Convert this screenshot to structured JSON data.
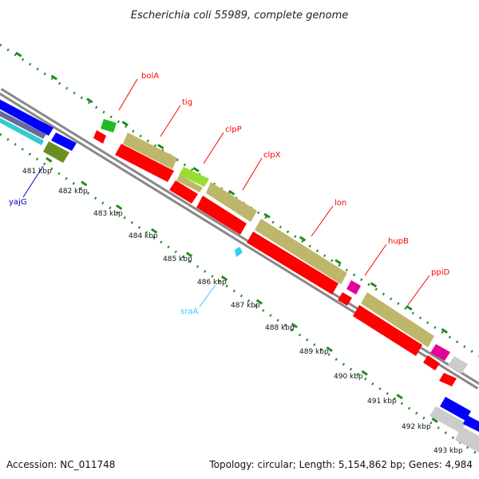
{
  "title": "Escherichia coli 55989, complete genome",
  "accession": "Accession: NC_011748",
  "topology": "Topology: circular; Length: 5,154,862 bp; Genes: 4,984",
  "colors": {
    "cds": "#ff0000",
    "blue_feature": "#0000ff",
    "gene_label_red": "#ff0000",
    "gene_label_blue": "#0000cc",
    "gene_label_cyan": "#33ccff",
    "khaki": "#bdb76b",
    "tick_green": "#228b22",
    "backbone": "#999999"
  },
  "tick_labels": [
    "481 kbp",
    "482 kbp",
    "483 kbp",
    "484 kbp",
    "485 kbp",
    "486 kbp",
    "487 kbp",
    "488 kbp",
    "489 kbp",
    "490 kbp",
    "491 kbp",
    "492 kbp",
    "493 kbp"
  ],
  "genes": [
    {
      "name": "bolA",
      "color": "#ff0000"
    },
    {
      "name": "tig",
      "color": "#ff0000"
    },
    {
      "name": "clpP",
      "color": "#ff0000"
    },
    {
      "name": "clpX",
      "color": "#ff0000"
    },
    {
      "name": "lon",
      "color": "#ff0000"
    },
    {
      "name": "hupB",
      "color": "#ff0000"
    },
    {
      "name": "ppiD",
      "color": "#ff0000"
    },
    {
      "name": "yajG",
      "color": "#0000cc"
    },
    {
      "name": "sraA",
      "color": "#33ccff"
    }
  ]
}
